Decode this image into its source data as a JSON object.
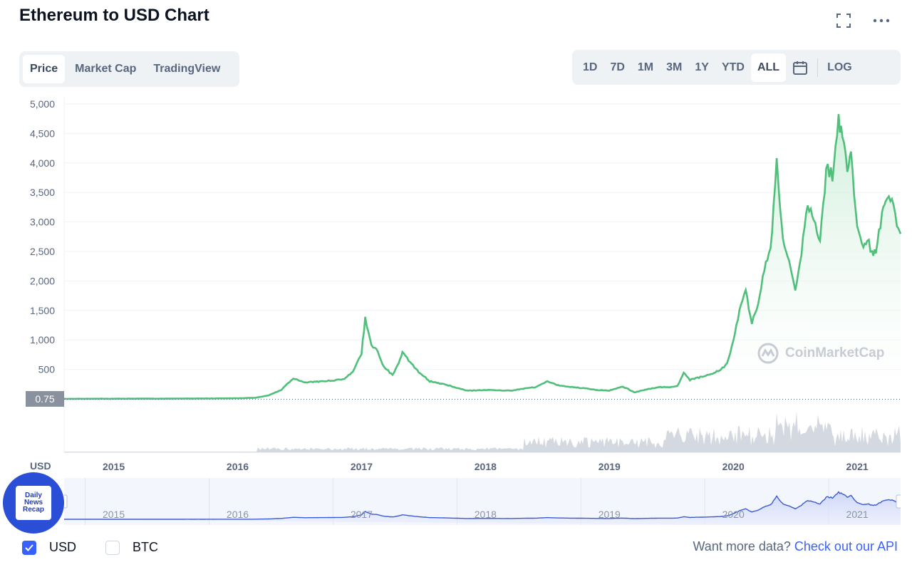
{
  "header": {
    "title": "Ethereum to USD Chart"
  },
  "tabs": [
    "Price",
    "Market Cap",
    "TradingView"
  ],
  "active_tab": "Price",
  "ranges": [
    "1D",
    "7D",
    "1M",
    "3M",
    "1Y",
    "YTD",
    "ALL"
  ],
  "active_range": "ALL",
  "log_label": "LOG",
  "currency_axis_label": "USD",
  "current_price_tag": "0.75",
  "watermark": "CoinMarketCap",
  "logo": {
    "line1": "Daily",
    "line2": "News",
    "line3": "Recap"
  },
  "toggles": [
    {
      "label": "USD",
      "checked": true
    },
    {
      "label": "BTC",
      "checked": false
    }
  ],
  "api_prompt": "Want more data?",
  "api_link": "Check out our API",
  "colors": {
    "line": "#4fbf7a",
    "area_top": "#c9ecd6",
    "volume": "#d4d8e0",
    "navigator_line": "#3b5bd6",
    "navigator_fill": "#e8ecfb",
    "accent": "#3861fb"
  },
  "chart_data": {
    "type": "area",
    "ylabel": "USD",
    "ylim": [
      0,
      5000
    ],
    "yticks": [
      500,
      1000,
      1500,
      2000,
      2500,
      3000,
      3500,
      4000,
      4500,
      5000
    ],
    "yticklabels": [
      "500",
      "1,000",
      "1,500",
      "2,000",
      "2,500",
      "3,000",
      "3,500",
      "4,000",
      "4,500",
      "5,000"
    ],
    "xlim": [
      2014.6,
      2021.35
    ],
    "xticks": [
      2015,
      2016,
      2017,
      2018,
      2019,
      2020,
      2021
    ],
    "xticklabels": [
      "2015",
      "2016",
      "2017",
      "2018",
      "2019",
      "2020",
      "2021"
    ],
    "grid": true,
    "series": [
      {
        "x": [
          2014.6,
          2015.0,
          2015.5,
          2016.0,
          2016.15,
          2016.25,
          2016.35,
          2016.45,
          2016.55,
          2016.7,
          2016.85,
          2016.93,
          2017.0,
          2017.03,
          2017.08,
          2017.12,
          2017.18,
          2017.25,
          2017.3,
          2017.33,
          2017.38,
          2017.45,
          2017.55,
          2017.7,
          2017.85,
          2018.0,
          2018.2,
          2018.4,
          2018.5,
          2018.6,
          2018.7,
          2018.8,
          2018.9,
          2019.0,
          2019.1,
          2019.15,
          2019.2,
          2019.3,
          2019.4,
          2019.5,
          2019.55,
          2019.6,
          2019.65,
          2019.7,
          2019.8,
          2019.9,
          2019.95,
          2020.0,
          2020.05,
          2020.1,
          2020.15,
          2020.2,
          2020.25,
          2020.3,
          2020.35,
          2020.37,
          2020.4,
          2020.45,
          2020.5,
          2020.55,
          2020.6,
          2020.65,
          2020.7,
          2020.75,
          2020.8,
          2020.85,
          2020.88,
          2020.92,
          2020.95,
          2021.0,
          2021.05,
          2021.08,
          2021.12,
          2021.15,
          2021.2,
          2021.23,
          2021.28,
          2021.32,
          2021.35
        ],
        "y": [
          2,
          3,
          5,
          10,
          20,
          60,
          150,
          350,
          280,
          300,
          330,
          450,
          780,
          1380,
          900,
          850,
          550,
          400,
          600,
          800,
          650,
          480,
          300,
          230,
          140,
          150,
          140,
          200,
          300,
          220,
          200,
          180,
          150,
          140,
          210,
          170,
          110,
          160,
          200,
          200,
          220,
          450,
          320,
          350,
          400,
          500,
          600,
          1000,
          1500,
          1800,
          1300,
          1600,
          2200,
          2500,
          4100,
          3500,
          2700,
          2300,
          1800,
          2500,
          3300,
          3000,
          2700,
          3900,
          3800,
          4700,
          4400,
          3900,
          4100,
          3000,
          2500,
          2700,
          2500,
          2500,
          3100,
          3300,
          3400,
          3000,
          2800
        ]
      }
    ]
  }
}
